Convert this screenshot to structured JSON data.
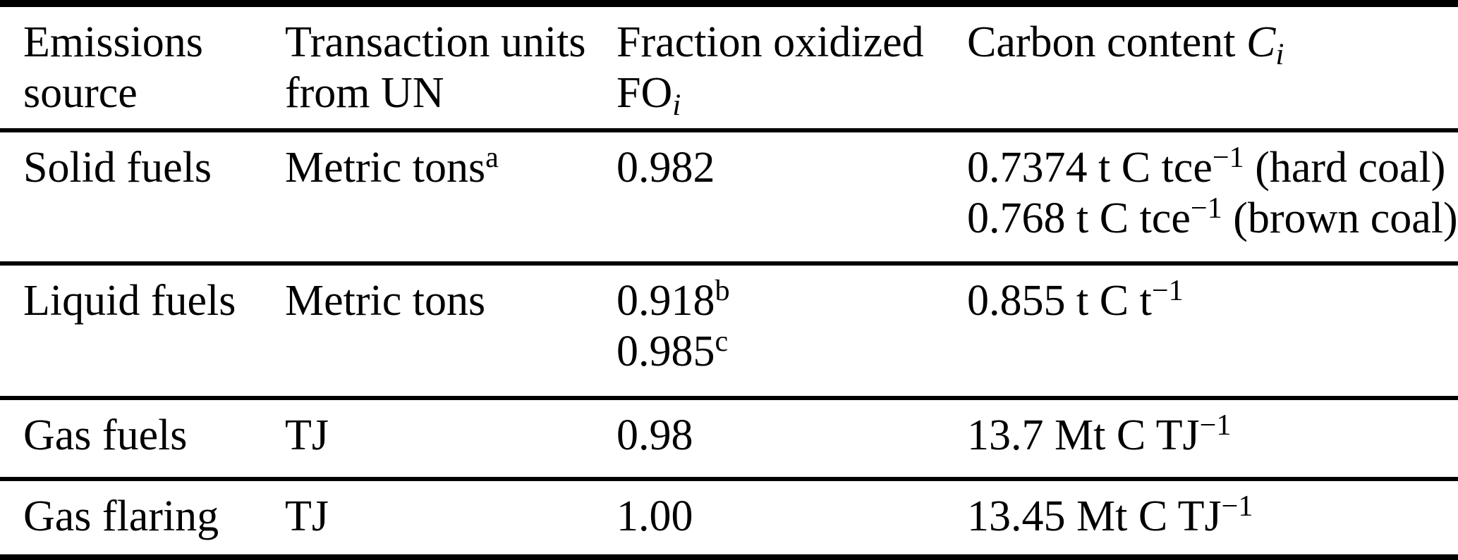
{
  "page": {
    "background_color": "#ffffff",
    "text_color": "#000000",
    "rule_color": "#000000"
  },
  "table": {
    "columns": [
      {
        "id": "emissions-source",
        "header_lines": [
          [
            {
              "t": "Emissions"
            }
          ],
          [
            {
              "t": "source"
            }
          ]
        ]
      },
      {
        "id": "transaction-units",
        "header_lines": [
          [
            {
              "t": "Transaction units"
            }
          ],
          [
            {
              "t": "from UN"
            }
          ]
        ]
      },
      {
        "id": "fraction-oxidized",
        "header_lines": [
          [
            {
              "t": "Fraction oxidized"
            }
          ],
          [
            {
              "t": "FO"
            },
            {
              "t": "i",
              "s": "sub"
            }
          ]
        ]
      },
      {
        "id": "carbon-content",
        "header_lines": [
          [
            {
              "t": "Carbon content "
            },
            {
              "t": "C",
              "s": "i"
            },
            {
              "t": "i",
              "s": "sub"
            }
          ]
        ]
      }
    ],
    "rows": [
      {
        "name": "solid-fuels",
        "cells": [
          [
            [
              {
                "t": "Solid fuels"
              }
            ]
          ],
          [
            [
              {
                "t": "Metric tons"
              },
              {
                "t": "a",
                "s": "sup"
              }
            ]
          ],
          [
            [
              {
                "t": "0.982"
              }
            ]
          ],
          [
            [
              {
                "t": "0.7374 t C tce"
              },
              {
                "t": "−1",
                "s": "sup"
              },
              {
                "t": " (hard coal)"
              }
            ],
            [
              {
                "t": "0.768 t C tce"
              },
              {
                "t": "−1",
                "s": "sup"
              },
              {
                "t": " (brown coal)"
              }
            ]
          ]
        ]
      },
      {
        "name": "liquid-fuels",
        "cells": [
          [
            [
              {
                "t": "Liquid fuels"
              }
            ]
          ],
          [
            [
              {
                "t": "Metric tons"
              }
            ]
          ],
          [
            [
              {
                "t": "0.918"
              },
              {
                "t": "b",
                "s": "sup"
              }
            ],
            [
              {
                "t": "0.985"
              },
              {
                "t": "c",
                "s": "sup"
              }
            ]
          ],
          [
            [
              {
                "t": "0.855 t C t"
              },
              {
                "t": "−1",
                "s": "sup"
              }
            ]
          ]
        ]
      },
      {
        "name": "gas-fuels",
        "cells": [
          [
            [
              {
                "t": "Gas fuels"
              }
            ]
          ],
          [
            [
              {
                "t": "TJ"
              }
            ]
          ],
          [
            [
              {
                "t": "0.98"
              }
            ]
          ],
          [
            [
              {
                "t": "13.7 Mt C TJ"
              },
              {
                "t": "−1",
                "s": "sup"
              }
            ]
          ]
        ]
      },
      {
        "name": "gas-flaring",
        "cells": [
          [
            [
              {
                "t": "Gas flaring"
              }
            ]
          ],
          [
            [
              {
                "t": "TJ"
              }
            ]
          ],
          [
            [
              {
                "t": "1.00"
              }
            ]
          ],
          [
            [
              {
                "t": "13.45 Mt C TJ"
              },
              {
                "t": "−1",
                "s": "sup"
              }
            ]
          ]
        ]
      }
    ]
  }
}
